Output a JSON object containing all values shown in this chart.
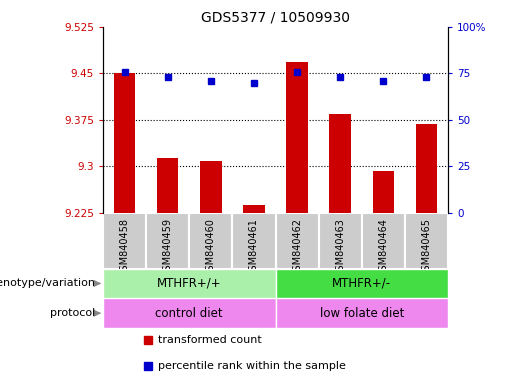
{
  "title": "GDS5377 / 10509930",
  "samples": [
    "GSM840458",
    "GSM840459",
    "GSM840460",
    "GSM840461",
    "GSM840462",
    "GSM840463",
    "GSM840464",
    "GSM840465"
  ],
  "red_values": [
    9.45,
    9.313,
    9.308,
    9.238,
    9.468,
    9.385,
    9.292,
    9.368
  ],
  "blue_values": [
    76,
    73,
    71,
    70,
    76,
    73,
    71,
    73
  ],
  "ylim_left": [
    9.225,
    9.525
  ],
  "ylim_right": [
    0,
    100
  ],
  "yticks_left": [
    9.225,
    9.3,
    9.375,
    9.45,
    9.525
  ],
  "yticks_right": [
    0,
    25,
    50,
    75,
    100
  ],
  "ytick_labels_right": [
    "0",
    "25",
    "50",
    "75",
    "100%"
  ],
  "bar_color": "#cc0000",
  "dot_color": "#0000cc",
  "bar_bottom": 9.225,
  "genotype_groups": [
    {
      "label": "MTHFR+/+",
      "start": 0,
      "end": 4,
      "color": "#aaf0aa"
    },
    {
      "label": "MTHFR+/-",
      "start": 4,
      "end": 8,
      "color": "#44dd44"
    }
  ],
  "protocol_groups": [
    {
      "label": "control diet",
      "start": 0,
      "end": 4,
      "color": "#ee88ee"
    },
    {
      "label": "low folate diet",
      "start": 4,
      "end": 8,
      "color": "#ee88ee"
    }
  ],
  "left_labels": [
    "genotype/variation",
    "protocol"
  ],
  "legend_items": [
    {
      "color": "#cc0000",
      "label": "transformed count"
    },
    {
      "color": "#0000cc",
      "label": "percentile rank within the sample"
    }
  ],
  "tick_label_color_left": "#cc0000",
  "tick_label_color_right": "#0000cc",
  "bg_color": "#ffffff",
  "xtick_box_color": "#cccccc"
}
